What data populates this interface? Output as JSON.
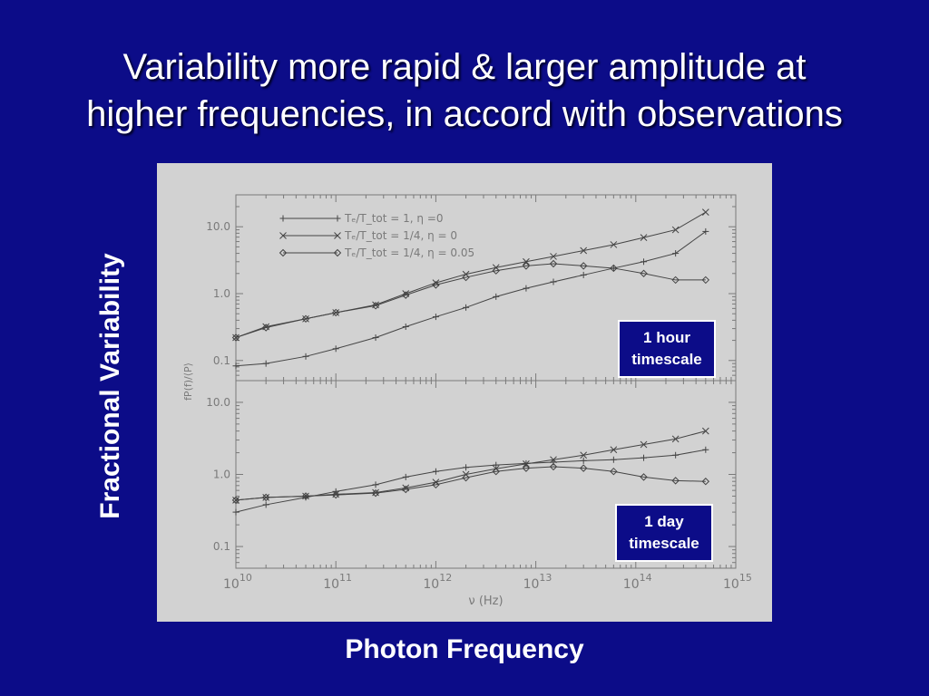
{
  "slide": {
    "title_line1": "Variability more rapid & larger amplitude at",
    "title_line2": "higher frequencies, in accord with observations",
    "ylabel": "Fractional Variability",
    "xlabel": "Photon Frequency",
    "background": "#0c0c88",
    "text_color": "#ffffff"
  },
  "callouts": {
    "top": {
      "line1": "1 hour",
      "line2": "timescale"
    },
    "bottom": {
      "line1": "1 day",
      "line2": "timescale"
    }
  },
  "chart_data": {
    "type": "line",
    "log_x": true,
    "log_y": true,
    "xlabel": "ν (Hz)",
    "ylabel": "fP(f)/⟨P⟩",
    "xlim": [
      10000000000.0,
      1000000000000000.0
    ],
    "x_ticks": [
      {
        "base": "10",
        "exp": "10"
      },
      {
        "base": "10",
        "exp": "11"
      },
      {
        "base": "10",
        "exp": "12"
      },
      {
        "base": "10",
        "exp": "13"
      },
      {
        "base": "10",
        "exp": "14"
      },
      {
        "base": "10",
        "exp": "15"
      }
    ],
    "y_ticks": [
      "0.1",
      "1.0",
      "10.0"
    ],
    "legend": {
      "placement": "top-left",
      "entries": [
        {
          "marker": "+",
          "label": "Tₑ/T_tot = 1, η =0"
        },
        {
          "marker": "×",
          "label": "Tₑ/T_tot = 1/4, η = 0"
        },
        {
          "marker": "◇",
          "label": "Tₑ/T_tot = 1/4, η = 0.05"
        }
      ]
    },
    "x": [
      10000000000.0,
      20000000000.0,
      50000000000.0,
      100000000000.0,
      250000000000.0,
      500000000000.0,
      1000000000000.0,
      2000000000000.0,
      4000000000000.0,
      8000000000000.0,
      15000000000000.0,
      30000000000000.0,
      60000000000000.0,
      120000000000000.0,
      250000000000000.0,
      500000000000000.0
    ],
    "panels": [
      {
        "name": "1 hour timescale",
        "ylim": [
          0.05,
          30
        ],
        "series": [
          {
            "marker": "+",
            "values": [
              0.083,
              0.09,
              0.115,
              0.15,
              0.22,
              0.32,
              0.45,
              0.62,
              0.9,
              1.2,
              1.5,
              1.9,
              2.4,
              3.0,
              4.0,
              8.5
            ]
          },
          {
            "marker": "×",
            "values": [
              0.22,
              0.32,
              0.42,
              0.52,
              0.68,
              1.0,
              1.45,
              1.95,
              2.45,
              3.0,
              3.6,
              4.4,
              5.4,
              6.9,
              9.0,
              16.5
            ]
          },
          {
            "marker": "◇",
            "values": [
              0.22,
              0.31,
              0.42,
              0.52,
              0.66,
              0.95,
              1.35,
              1.75,
              2.2,
              2.6,
              2.8,
              2.6,
              2.4,
              2.0,
              1.6,
              1.6
            ]
          }
        ]
      },
      {
        "name": "1 day timescale",
        "ylim": [
          0.05,
          20
        ],
        "series": [
          {
            "marker": "+",
            "values": [
              0.3,
              0.38,
              0.48,
              0.58,
              0.72,
              0.92,
              1.1,
              1.25,
              1.35,
              1.42,
              1.48,
              1.55,
              1.6,
              1.7,
              1.85,
              2.2
            ]
          },
          {
            "marker": "×",
            "values": [
              0.44,
              0.48,
              0.5,
              0.53,
              0.56,
              0.65,
              0.78,
              1.0,
              1.2,
              1.4,
              1.6,
              1.85,
              2.2,
              2.6,
              3.1,
              4.0
            ]
          },
          {
            "marker": "◇",
            "values": [
              0.44,
              0.48,
              0.5,
              0.52,
              0.55,
              0.62,
              0.72,
              0.9,
              1.1,
              1.22,
              1.28,
              1.22,
              1.1,
              0.92,
              0.82,
              0.8
            ]
          }
        ]
      }
    ],
    "colors": {
      "axes": "#7a7a7a",
      "lines": "#444444",
      "panel_bg": "#d2d2d2"
    }
  }
}
